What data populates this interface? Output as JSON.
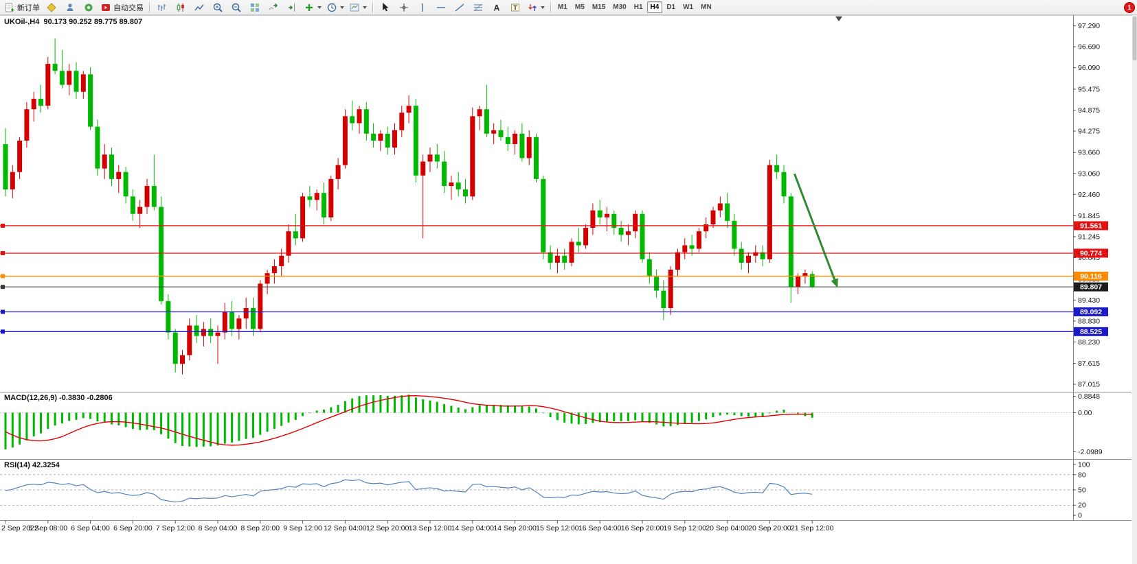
{
  "window": {
    "badge": "1"
  },
  "toolbar": {
    "new_order_label": "新订单",
    "autotrading_label": "自动交易",
    "glyphs": {
      "text_tool": "A",
      "label_tool": "T"
    },
    "timeframes": [
      {
        "label": "M1",
        "active": false
      },
      {
        "label": "M5",
        "active": false
      },
      {
        "label": "M15",
        "active": false
      },
      {
        "label": "M30",
        "active": false
      },
      {
        "label": "H1",
        "active": false
      },
      {
        "label": "H4",
        "active": true
      },
      {
        "label": "D1",
        "active": false
      },
      {
        "label": "W1",
        "active": false
      },
      {
        "label": "MN",
        "active": false
      }
    ]
  },
  "chart": {
    "symbol_header": "UKOil-,H4  90.173 90.252 89.775 89.807",
    "macd_header": "MACD(12,26,9) -0.3830 -0.2806",
    "rsi_header": "RSI(14) 42.3254"
  },
  "chart_data": {
    "type": "candlestick",
    "symbol": "UKOil-",
    "timeframe": "H4",
    "last_candle": {
      "open": 90.173,
      "high": 90.252,
      "low": 89.775,
      "close": 89.807
    },
    "colors": {
      "bull": "#d40000",
      "bear": "#00b800",
      "macd_hist": "#00b800",
      "macd_signal": "#e00000",
      "rsi_line": "#4f81bd",
      "arrow": "#2e8b2e"
    },
    "price_axis": {
      "top_price": 97.52,
      "bottom_price": 86.82,
      "ticks": [
        "97.290",
        "96.690",
        "96.090",
        "95.475",
        "94.875",
        "94.275",
        "93.660",
        "93.060",
        "92.460",
        "91.845",
        "91.245",
        "90.645",
        "90.030",
        "89.430",
        "88.830",
        "88.230",
        "87.615",
        "87.015"
      ]
    },
    "macd_axis": {
      "max": 1.05,
      "min": -2.45,
      "ticks": [
        "0.8848",
        "0.00",
        "-2.0989"
      ]
    },
    "rsi_axis": {
      "max": 108,
      "min": -8,
      "ticks": [
        "100",
        "80",
        "50",
        "20",
        "0"
      ],
      "levels": [
        80,
        50,
        20
      ]
    },
    "time_axis": {
      "candles_per_label": 6,
      "labels": [
        "2 Sep 2022",
        "5 Sep 08:00",
        "6 Sep 04:00",
        "6 Sep 20:00",
        "7 Sep 12:00",
        "8 Sep 04:00",
        "8 Sep 20:00",
        "9 Sep 12:00",
        "12 Sep 04:00",
        "12 Sep 20:00",
        "13 Sep 12:00",
        "14 Sep 04:00",
        "14 Sep 20:00",
        "15 Sep 12:00",
        "16 Sep 04:00",
        "16 Sep 20:00",
        "19 Sep 12:00",
        "20 Sep 04:00",
        "20 Sep 20:00",
        "21 Sep 12:00"
      ]
    },
    "hlines": [
      {
        "label": "91.561",
        "value": 91.561,
        "color": "#e31212",
        "kind": "resistance"
      },
      {
        "label": "90.774",
        "value": 90.774,
        "color": "#e31212",
        "kind": "resistance"
      },
      {
        "label": "90.116",
        "value": 90.116,
        "color": "#ff8a00",
        "kind": "pivot"
      },
      {
        "label": "89.807",
        "value": 89.807,
        "color": "#3a3a3a",
        "kind": "bid"
      },
      {
        "label": "89.092",
        "value": 89.092,
        "color": "#1a1acc",
        "kind": "support"
      },
      {
        "label": "88.525",
        "value": 88.525,
        "color": "#1a1acc",
        "kind": "support"
      }
    ],
    "arrow": {
      "from": {
        "index": 111.5,
        "price": 93.05
      },
      "to": {
        "index": 117.6,
        "price": 89.78
      }
    },
    "candles": [
      [
        93.9,
        94.35,
        92.4,
        92.6
      ],
      [
        92.6,
        93.3,
        92.35,
        93.1
      ],
      [
        93.1,
        94.1,
        92.9,
        94.0
      ],
      [
        94.0,
        95.1,
        93.8,
        94.9
      ],
      [
        94.9,
        95.4,
        94.55,
        95.2
      ],
      [
        95.2,
        95.6,
        94.8,
        95.0
      ],
      [
        95.0,
        96.4,
        94.9,
        96.2
      ],
      [
        96.2,
        96.93,
        95.9,
        96.0
      ],
      [
        96.0,
        96.6,
        95.5,
        95.6
      ],
      [
        95.6,
        96.2,
        95.3,
        96.0
      ],
      [
        96.0,
        96.25,
        95.2,
        95.4
      ],
      [
        95.4,
        96.0,
        95.2,
        95.9
      ],
      [
        95.9,
        96.1,
        94.3,
        94.4
      ],
      [
        94.4,
        94.6,
        93.0,
        93.2
      ],
      [
        93.2,
        93.9,
        92.9,
        93.6
      ],
      [
        93.6,
        93.8,
        92.7,
        92.9
      ],
      [
        92.9,
        93.3,
        92.5,
        93.1
      ],
      [
        93.1,
        93.25,
        92.2,
        92.4
      ],
      [
        92.4,
        92.6,
        91.7,
        91.9
      ],
      [
        91.9,
        92.3,
        91.5,
        92.1
      ],
      [
        92.1,
        92.9,
        91.9,
        92.7
      ],
      [
        92.7,
        93.6,
        92.0,
        92.1
      ],
      [
        92.1,
        92.4,
        89.3,
        89.4
      ],
      [
        89.4,
        89.6,
        88.3,
        88.5
      ],
      [
        88.5,
        88.6,
        87.35,
        87.6
      ],
      [
        87.6,
        88.0,
        87.3,
        87.85
      ],
      [
        87.85,
        88.9,
        87.7,
        88.7
      ],
      [
        88.7,
        89.0,
        88.2,
        88.4
      ],
      [
        88.4,
        88.8,
        88.1,
        88.6
      ],
      [
        88.6,
        88.9,
        88.2,
        88.4
      ],
      [
        88.4,
        88.7,
        87.6,
        88.5
      ],
      [
        88.5,
        89.35,
        88.3,
        89.1
      ],
      [
        89.1,
        89.4,
        88.4,
        88.6
      ],
      [
        88.6,
        89.0,
        88.3,
        88.9
      ],
      [
        88.9,
        89.5,
        88.6,
        89.2
      ],
      [
        89.2,
        89.5,
        88.4,
        88.6
      ],
      [
        88.6,
        90.0,
        88.5,
        89.9
      ],
      [
        89.9,
        90.3,
        89.6,
        90.2
      ],
      [
        90.2,
        90.6,
        89.9,
        90.4
      ],
      [
        90.4,
        90.9,
        90.1,
        90.7
      ],
      [
        90.7,
        91.6,
        90.5,
        91.4
      ],
      [
        91.4,
        91.9,
        91.0,
        91.2
      ],
      [
        91.2,
        92.5,
        91.1,
        92.4
      ],
      [
        92.4,
        92.7,
        92.1,
        92.3
      ],
      [
        92.3,
        92.6,
        92.0,
        92.5
      ],
      [
        92.5,
        92.8,
        91.6,
        91.8
      ],
      [
        91.8,
        93.0,
        91.7,
        92.9
      ],
      [
        92.9,
        93.5,
        92.6,
        93.3
      ],
      [
        93.3,
        94.9,
        93.2,
        94.7
      ],
      [
        94.7,
        95.15,
        94.3,
        94.5
      ],
      [
        94.5,
        95.0,
        94.2,
        94.9
      ],
      [
        94.9,
        95.1,
        94.0,
        94.2
      ],
      [
        94.2,
        94.5,
        93.8,
        94.0
      ],
      [
        94.0,
        94.3,
        93.7,
        94.2
      ],
      [
        94.2,
        94.4,
        93.6,
        93.8
      ],
      [
        93.8,
        94.5,
        93.6,
        94.3
      ],
      [
        94.3,
        95.0,
        94.1,
        94.8
      ],
      [
        94.8,
        95.3,
        94.5,
        95.0
      ],
      [
        95.0,
        95.2,
        92.8,
        93.0
      ],
      [
        93.0,
        93.6,
        91.2,
        93.4
      ],
      [
        93.4,
        93.8,
        93.1,
        93.6
      ],
      [
        93.6,
        93.9,
        93.2,
        93.4
      ],
      [
        93.4,
        93.7,
        92.5,
        92.7
      ],
      [
        92.7,
        93.0,
        92.3,
        92.8
      ],
      [
        92.8,
        93.1,
        92.4,
        92.6
      ],
      [
        92.6,
        92.9,
        92.2,
        92.4
      ],
      [
        92.4,
        94.95,
        92.3,
        94.7
      ],
      [
        94.7,
        95.0,
        94.3,
        94.9
      ],
      [
        94.9,
        95.6,
        94.1,
        94.2
      ],
      [
        94.2,
        94.5,
        93.9,
        94.3
      ],
      [
        94.3,
        94.6,
        94.0,
        94.1
      ],
      [
        94.1,
        94.4,
        93.7,
        93.9
      ],
      [
        93.9,
        94.3,
        93.6,
        94.2
      ],
      [
        94.2,
        94.5,
        93.4,
        93.5
      ],
      [
        93.5,
        94.3,
        93.3,
        94.1
      ],
      [
        94.1,
        94.2,
        92.8,
        92.9
      ],
      [
        92.9,
        93.0,
        90.6,
        90.8
      ],
      [
        90.8,
        91.0,
        90.3,
        90.5
      ],
      [
        90.5,
        90.9,
        90.2,
        90.7
      ],
      [
        90.7,
        90.9,
        90.3,
        90.5
      ],
      [
        90.5,
        91.2,
        90.4,
        91.1
      ],
      [
        91.1,
        91.5,
        90.8,
        91.0
      ],
      [
        91.0,
        91.6,
        90.9,
        91.5
      ],
      [
        91.5,
        92.2,
        91.3,
        92.0
      ],
      [
        92.0,
        92.3,
        91.6,
        91.8
      ],
      [
        91.8,
        92.1,
        91.4,
        91.9
      ],
      [
        91.9,
        92.0,
        91.3,
        91.5
      ],
      [
        91.5,
        91.7,
        91.1,
        91.3
      ],
      [
        91.3,
        91.6,
        91.0,
        91.4
      ],
      [
        91.4,
        92.0,
        91.2,
        91.9
      ],
      [
        91.9,
        92.0,
        90.5,
        90.6
      ],
      [
        90.6,
        90.8,
        89.9,
        90.1
      ],
      [
        90.1,
        90.3,
        89.5,
        89.7
      ],
      [
        89.7,
        90.0,
        88.85,
        89.2
      ],
      [
        89.2,
        90.4,
        89.0,
        90.3
      ],
      [
        90.3,
        90.9,
        90.1,
        90.8
      ],
      [
        90.8,
        91.2,
        90.6,
        91.0
      ],
      [
        91.0,
        91.3,
        90.7,
        90.9
      ],
      [
        90.9,
        91.5,
        90.8,
        91.4
      ],
      [
        91.4,
        91.8,
        91.2,
        91.6
      ],
      [
        91.6,
        92.1,
        91.5,
        92.0
      ],
      [
        92.0,
        92.4,
        91.8,
        92.2
      ],
      [
        92.2,
        92.5,
        91.5,
        91.7
      ],
      [
        91.7,
        91.9,
        90.7,
        90.9
      ],
      [
        90.9,
        91.1,
        90.3,
        90.5
      ],
      [
        90.5,
        90.8,
        90.2,
        90.7
      ],
      [
        90.7,
        91.0,
        90.5,
        90.8
      ],
      [
        90.8,
        91.0,
        90.4,
        90.6
      ],
      [
        90.6,
        93.45,
        90.5,
        93.3
      ],
      [
        93.3,
        93.6,
        92.9,
        93.1
      ],
      [
        93.1,
        93.3,
        92.2,
        92.4
      ],
      [
        92.4,
        92.5,
        89.35,
        89.8
      ],
      [
        89.8,
        90.2,
        89.6,
        90.1
      ],
      [
        90.1,
        90.3,
        89.9,
        90.2
      ],
      [
        90.173,
        90.252,
        89.775,
        89.807
      ]
    ]
  }
}
